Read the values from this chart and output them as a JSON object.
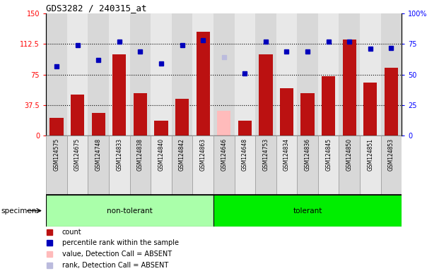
{
  "title": "GDS3282 / 240315_at",
  "samples": [
    "GSM124575",
    "GSM124675",
    "GSM124748",
    "GSM124833",
    "GSM124838",
    "GSM124840",
    "GSM124842",
    "GSM124863",
    "GSM124646",
    "GSM124648",
    "GSM124753",
    "GSM124834",
    "GSM124836",
    "GSM124845",
    "GSM124850",
    "GSM124851",
    "GSM124853"
  ],
  "n_nontolerant": 8,
  "n_tolerant": 9,
  "count_values": [
    22,
    50,
    28,
    100,
    52,
    18,
    45,
    128,
    30,
    18,
    100,
    58,
    52,
    73,
    118,
    65,
    83
  ],
  "rank_values": [
    57,
    74,
    62,
    77,
    69,
    59,
    74,
    78,
    64,
    51,
    77,
    69,
    69,
    77,
    77,
    71,
    72
  ],
  "absent_count_idx": 8,
  "absent_rank_idx": 8,
  "bar_color_normal": "#bb1111",
  "bar_color_absent_count": "#ffbbbb",
  "bar_color_absent_rank": "#bbbbdd",
  "rank_color_normal": "#0000bb",
  "rank_color_absent": "#bbbbdd",
  "ylim_left": [
    0,
    150
  ],
  "ylim_right": [
    0,
    100
  ],
  "yticks_left": [
    0,
    37.5,
    75,
    112.5,
    150
  ],
  "ytick_labels_left": [
    "0",
    "37.5",
    "75",
    "112.5",
    "150"
  ],
  "yticks_right": [
    0,
    25,
    50,
    75,
    100
  ],
  "ytick_labels_right": [
    "0",
    "25",
    "50",
    "75",
    "100%"
  ],
  "hlines": [
    37.5,
    75,
    112.5
  ],
  "group_nontolerant_label": "non-tolerant",
  "group_tolerant_label": "tolerant",
  "group_nontolerant_color": "#aaffaa",
  "group_tolerant_color": "#00ee00",
  "specimen_label": "specimen",
  "col_bg_even": "#d8d8d8",
  "col_bg_odd": "#e8e8e8",
  "legend_items": [
    {
      "label": "count",
      "color": "#bb1111"
    },
    {
      "label": "percentile rank within the sample",
      "color": "#0000bb"
    },
    {
      "label": "value, Detection Call = ABSENT",
      "color": "#ffbbbb"
    },
    {
      "label": "rank, Detection Call = ABSENT",
      "color": "#bbbbdd"
    }
  ]
}
